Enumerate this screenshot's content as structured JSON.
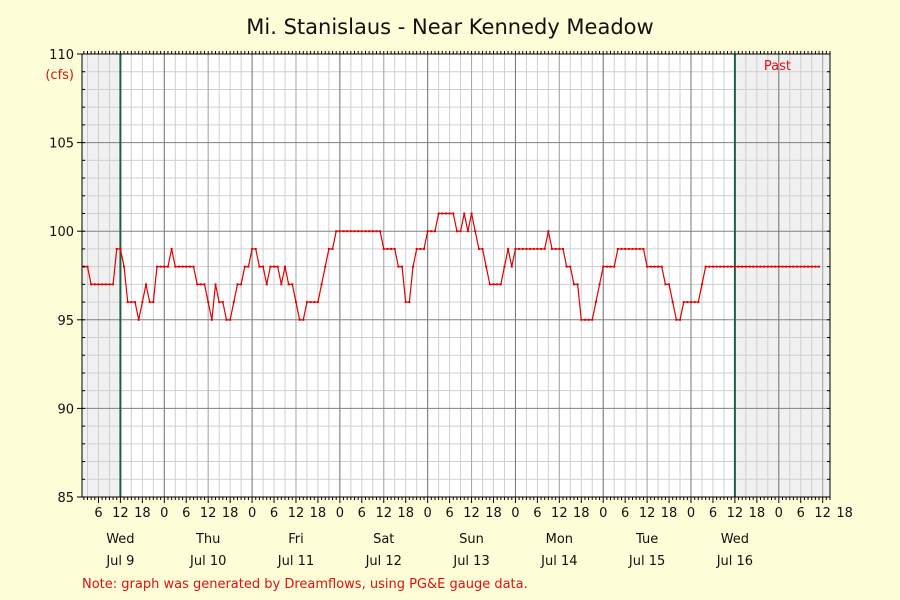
{
  "chart_data": {
    "type": "line",
    "title": "Mi. Stanislaus - Near Kennedy Meadow",
    "ylabel_unit": "(cfs)",
    "ylim": [
      85,
      110
    ],
    "y_ticks": [
      85,
      90,
      95,
      100,
      105,
      110
    ],
    "x_unit": "hours since Wed Jul 9 00:00",
    "x_range": [
      -10.5,
      194
    ],
    "x_tick_labels": [
      {
        "x": -6,
        "label": "6"
      },
      {
        "x": 0,
        "label": "12"
      },
      {
        "x": 6,
        "label": "18"
      },
      {
        "x": 12,
        "label": "0"
      },
      {
        "x": 18,
        "label": "6"
      },
      {
        "x": 24,
        "label": "12"
      },
      {
        "x": 30,
        "label": "18"
      },
      {
        "x": 36,
        "label": "0"
      },
      {
        "x": 42,
        "label": "6"
      },
      {
        "x": 48,
        "label": "12"
      },
      {
        "x": 54,
        "label": "18"
      },
      {
        "x": 60,
        "label": "0"
      },
      {
        "x": 66,
        "label": "6"
      },
      {
        "x": 72,
        "label": "12"
      },
      {
        "x": 78,
        "label": "18"
      },
      {
        "x": 84,
        "label": "0"
      },
      {
        "x": 90,
        "label": "6"
      },
      {
        "x": 96,
        "label": "12"
      },
      {
        "x": 102,
        "label": "18"
      },
      {
        "x": 108,
        "label": "0"
      },
      {
        "x": 114,
        "label": "6"
      },
      {
        "x": 120,
        "label": "12"
      },
      {
        "x": 126,
        "label": "18"
      },
      {
        "x": 132,
        "label": "0"
      },
      {
        "x": 138,
        "label": "6"
      },
      {
        "x": 144,
        "label": "12"
      },
      {
        "x": 150,
        "label": "18"
      },
      {
        "x": 156,
        "label": "0"
      },
      {
        "x": 162,
        "label": "6"
      },
      {
        "x": 168,
        "label": "12"
      },
      {
        "x": 174,
        "label": "18"
      },
      {
        "x": 180,
        "label": "0"
      },
      {
        "x": 186,
        "label": "6"
      },
      {
        "x": 192,
        "label": "12"
      },
      {
        "x": 198,
        "label": "18"
      }
    ],
    "day_labels": [
      {
        "x": 0,
        "day": "Wed",
        "date": "Jul 9"
      },
      {
        "x": 24,
        "day": "Thu",
        "date": "Jul 10"
      },
      {
        "x": 48,
        "day": "Fri",
        "date": "Jul 11"
      },
      {
        "x": 72,
        "day": "Sat",
        "date": "Jul 12"
      },
      {
        "x": 96,
        "day": "Sun",
        "date": "Jul 13"
      },
      {
        "x": 120,
        "day": "Mon",
        "date": "Jul 14"
      },
      {
        "x": 144,
        "day": "Tue",
        "date": "Jul 15"
      },
      {
        "x": 168,
        "day": "Wed",
        "date": "Jul 16"
      }
    ],
    "window_start": 0,
    "window_end": 168,
    "window_label": "Past",
    "grid": true,
    "note": "Note: graph was generated by Dreamflows, using PG&E gauge data.",
    "series_color": "#e00000",
    "series": [
      {
        "name": "",
        "points": [
          [
            -10,
            98
          ],
          [
            -9,
            98
          ],
          [
            -8,
            97
          ],
          [
            -7,
            97
          ],
          [
            -6,
            97
          ],
          [
            -5,
            97
          ],
          [
            -4,
            97
          ],
          [
            -3,
            97
          ],
          [
            -2,
            97
          ],
          [
            -1,
            99
          ],
          [
            0,
            99
          ],
          [
            1,
            98
          ],
          [
            2,
            96
          ],
          [
            3,
            96
          ],
          [
            4,
            96
          ],
          [
            5,
            95
          ],
          [
            6,
            96
          ],
          [
            7,
            97
          ],
          [
            8,
            96
          ],
          [
            9,
            96
          ],
          [
            10,
            98
          ],
          [
            11,
            98
          ],
          [
            12,
            98
          ],
          [
            13,
            98
          ],
          [
            14,
            99
          ],
          [
            15,
            98
          ],
          [
            16,
            98
          ],
          [
            17,
            98
          ],
          [
            18,
            98
          ],
          [
            19,
            98
          ],
          [
            20,
            98
          ],
          [
            21,
            97
          ],
          [
            22,
            97
          ],
          [
            23,
            97
          ],
          [
            24,
            96
          ],
          [
            25,
            95
          ],
          [
            26,
            97
          ],
          [
            27,
            96
          ],
          [
            28,
            96
          ],
          [
            29,
            95
          ],
          [
            30,
            95
          ],
          [
            31,
            96
          ],
          [
            32,
            97
          ],
          [
            33,
            97
          ],
          [
            34,
            98
          ],
          [
            35,
            98
          ],
          [
            36,
            99
          ],
          [
            37,
            99
          ],
          [
            38,
            98
          ],
          [
            39,
            98
          ],
          [
            40,
            97
          ],
          [
            41,
            98
          ],
          [
            42,
            98
          ],
          [
            43,
            98
          ],
          [
            44,
            97
          ],
          [
            45,
            98
          ],
          [
            46,
            97
          ],
          [
            47,
            97
          ],
          [
            48,
            96
          ],
          [
            49,
            95
          ],
          [
            50,
            95
          ],
          [
            51,
            96
          ],
          [
            52,
            96
          ],
          [
            53,
            96
          ],
          [
            54,
            96
          ],
          [
            55,
            97
          ],
          [
            56,
            98
          ],
          [
            57,
            99
          ],
          [
            58,
            99
          ],
          [
            59,
            100
          ],
          [
            60,
            100
          ],
          [
            61,
            100
          ],
          [
            62,
            100
          ],
          [
            63,
            100
          ],
          [
            64,
            100
          ],
          [
            65,
            100
          ],
          [
            66,
            100
          ],
          [
            67,
            100
          ],
          [
            68,
            100
          ],
          [
            69,
            100
          ],
          [
            70,
            100
          ],
          [
            71,
            100
          ],
          [
            72,
            99
          ],
          [
            73,
            99
          ],
          [
            74,
            99
          ],
          [
            75,
            99
          ],
          [
            76,
            98
          ],
          [
            77,
            98
          ],
          [
            78,
            96
          ],
          [
            79,
            96
          ],
          [
            80,
            98
          ],
          [
            81,
            99
          ],
          [
            82,
            99
          ],
          [
            83,
            99
          ],
          [
            84,
            100
          ],
          [
            85,
            100
          ],
          [
            86,
            100
          ],
          [
            87,
            101
          ],
          [
            88,
            101
          ],
          [
            89,
            101
          ],
          [
            90,
            101
          ],
          [
            91,
            101
          ],
          [
            92,
            100
          ],
          [
            93,
            100
          ],
          [
            94,
            101
          ],
          [
            95,
            100
          ],
          [
            96,
            101
          ],
          [
            97,
            100
          ],
          [
            98,
            99
          ],
          [
            99,
            99
          ],
          [
            100,
            98
          ],
          [
            101,
            97
          ],
          [
            102,
            97
          ],
          [
            103,
            97
          ],
          [
            104,
            97
          ],
          [
            105,
            98
          ],
          [
            106,
            99
          ],
          [
            107,
            98
          ],
          [
            108,
            99
          ],
          [
            109,
            99
          ],
          [
            110,
            99
          ],
          [
            111,
            99
          ],
          [
            112,
            99
          ],
          [
            113,
            99
          ],
          [
            114,
            99
          ],
          [
            115,
            99
          ],
          [
            116,
            99
          ],
          [
            117,
            100
          ],
          [
            118,
            99
          ],
          [
            119,
            99
          ],
          [
            120,
            99
          ],
          [
            121,
            99
          ],
          [
            122,
            98
          ],
          [
            123,
            98
          ],
          [
            124,
            97
          ],
          [
            125,
            97
          ],
          [
            126,
            95
          ],
          [
            127,
            95
          ],
          [
            128,
            95
          ],
          [
            129,
            95
          ],
          [
            130,
            96
          ],
          [
            131,
            97
          ],
          [
            132,
            98
          ],
          [
            133,
            98
          ],
          [
            134,
            98
          ],
          [
            135,
            98
          ],
          [
            136,
            99
          ],
          [
            137,
            99
          ],
          [
            138,
            99
          ],
          [
            139,
            99
          ],
          [
            140,
            99
          ],
          [
            141,
            99
          ],
          [
            142,
            99
          ],
          [
            143,
            99
          ],
          [
            144,
            98
          ],
          [
            145,
            98
          ],
          [
            146,
            98
          ],
          [
            147,
            98
          ],
          [
            148,
            98
          ],
          [
            149,
            97
          ],
          [
            150,
            97
          ],
          [
            151,
            96
          ],
          [
            152,
            95
          ],
          [
            153,
            95
          ],
          [
            154,
            96
          ],
          [
            155,
            96
          ],
          [
            156,
            96
          ],
          [
            157,
            96
          ],
          [
            158,
            96
          ],
          [
            159,
            97
          ],
          [
            160,
            98
          ],
          [
            161,
            98
          ],
          [
            162,
            98
          ],
          [
            163,
            98
          ],
          [
            164,
            98
          ],
          [
            165,
            98
          ],
          [
            166,
            98
          ],
          [
            167,
            98
          ],
          [
            168,
            98
          ],
          [
            169,
            98
          ],
          [
            170,
            98
          ],
          [
            171,
            98
          ],
          [
            172,
            98
          ],
          [
            173,
            98
          ],
          [
            174,
            98
          ],
          [
            175,
            98
          ],
          [
            176,
            98
          ],
          [
            177,
            98
          ],
          [
            178,
            98
          ],
          [
            179,
            98
          ],
          [
            180,
            98
          ],
          [
            181,
            98
          ],
          [
            182,
            98
          ],
          [
            183,
            98
          ],
          [
            184,
            98
          ],
          [
            185,
            98
          ],
          [
            186,
            98
          ],
          [
            187,
            98
          ],
          [
            188,
            98
          ],
          [
            189,
            98
          ],
          [
            190,
            98
          ],
          [
            191,
            98
          ]
        ]
      }
    ]
  }
}
